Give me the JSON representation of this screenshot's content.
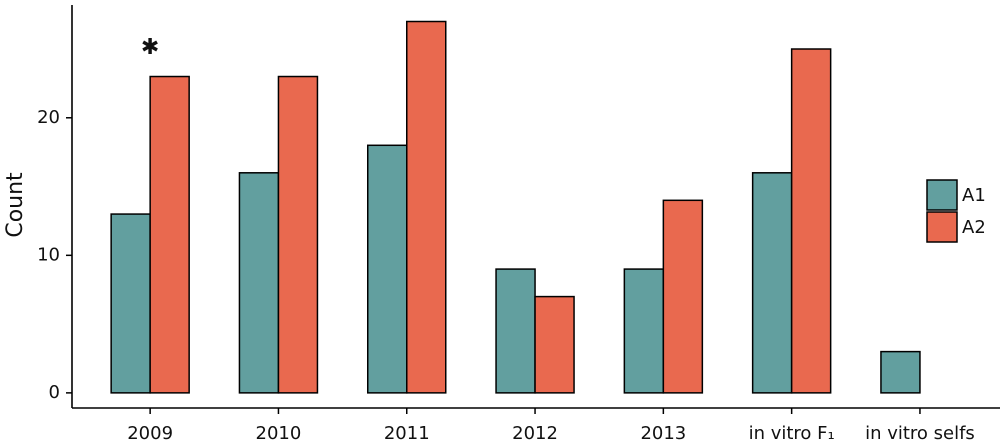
{
  "chart_data": {
    "type": "bar",
    "y_label": "Count",
    "categories": [
      "2009",
      "2010",
      "2011",
      "2012",
      "2013",
      "in vitro F₁",
      "in vitro selfs"
    ],
    "series": [
      {
        "name": "A1",
        "color": "#629f9f",
        "values": [
          13,
          16,
          18,
          9,
          9,
          16,
          3
        ]
      },
      {
        "name": "A2",
        "color": "#e9694f",
        "values": [
          23,
          23,
          27,
          7,
          14,
          25,
          0
        ]
      }
    ],
    "annotation": "✱",
    "ylim": [
      -1.1,
      28.2
    ],
    "yticks": [
      0,
      10,
      20
    ],
    "grid": false,
    "legend": "right"
  }
}
